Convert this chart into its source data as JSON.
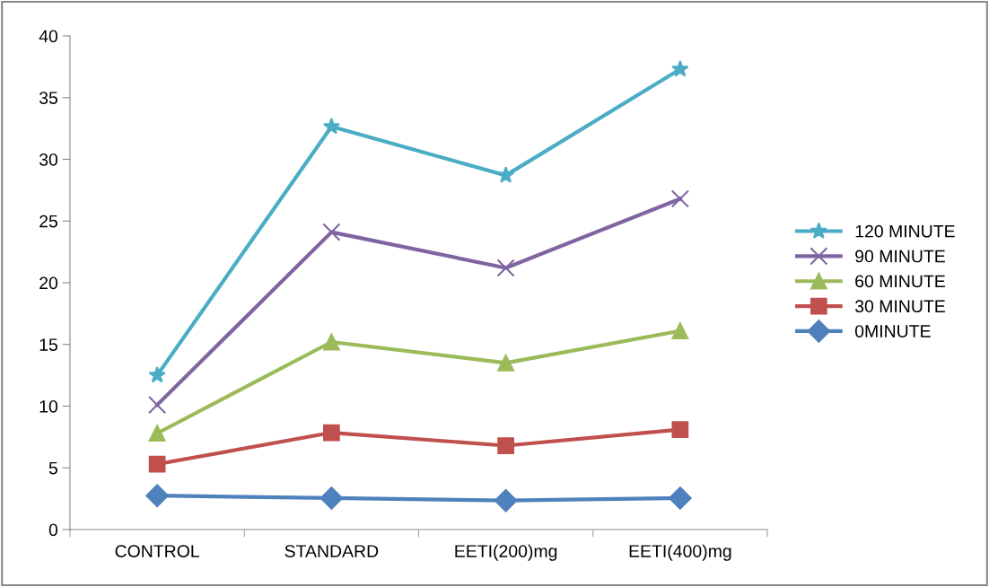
{
  "chart_data": {
    "type": "line",
    "categories": [
      "CONTROL",
      "STANDARD",
      "EETI(200)mg",
      "EETI(400)mg"
    ],
    "ylim": [
      0,
      40
    ],
    "yticks": [
      0,
      5,
      10,
      15,
      20,
      25,
      30,
      35,
      40
    ],
    "grid": false,
    "legend": "right",
    "series": [
      {
        "name": "120 MINUTE",
        "color": "#4bacc6",
        "marker": "star",
        "values": [
          12.5,
          32.65,
          28.7,
          37.3
        ]
      },
      {
        "name": "90 MINUTE",
        "color": "#8064a2",
        "marker": "cross",
        "values": [
          10.1,
          24.1,
          21.2,
          26.8
        ]
      },
      {
        "name": "60 MINUTE",
        "color": "#9bbb59",
        "marker": "triangle",
        "values": [
          7.8,
          15.2,
          13.5,
          16.1
        ]
      },
      {
        "name": "30 MINUTE",
        "color": "#c0504d",
        "marker": "square",
        "values": [
          5.3,
          7.85,
          6.8,
          8.1
        ]
      },
      {
        "name": "0MINUTE",
        "color": "#4f81bd",
        "marker": "diamond",
        "values": [
          2.75,
          2.55,
          2.35,
          2.55
        ]
      }
    ]
  }
}
